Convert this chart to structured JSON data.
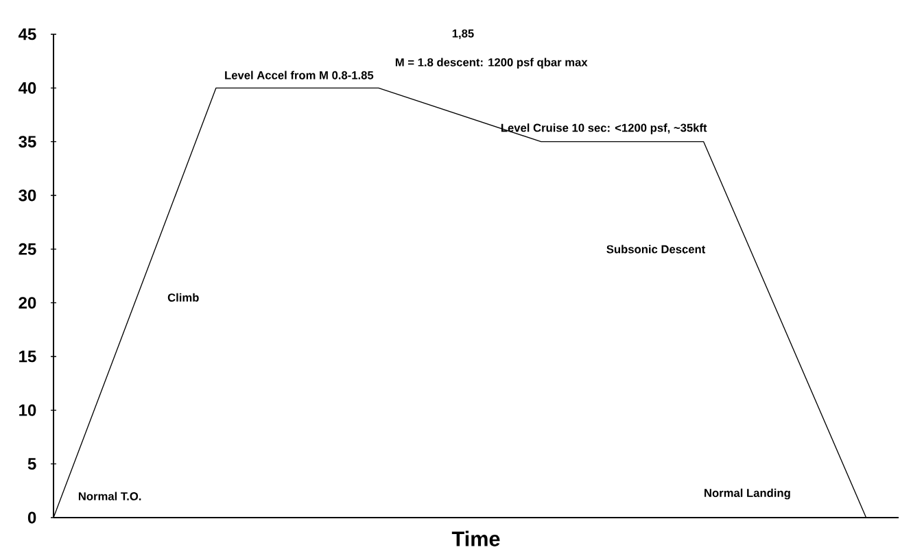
{
  "chart_data": {
    "type": "line",
    "xlabel": "Time",
    "categories": [
      null,
      null,
      null,
      null,
      null,
      null
    ],
    "values": [
      0,
      40,
      40,
      35,
      35,
      0
    ],
    "color": "#000000",
    "ylim": [
      0,
      45
    ],
    "yticks": [
      0,
      5,
      10,
      15,
      20,
      25,
      30,
      35,
      40,
      45
    ],
    "marker": "none",
    "line_style": "solid",
    "annotations": [
      "Normal T.O.",
      "Climb",
      "Level Accel from M 0.8-1.85",
      "1,85",
      "M = 1.8 descent: 1200 psf qbar max",
      "Level Cruise 10 sec: <1200 psf, ~35kft",
      "Subsonic Descent",
      "Normal Landing"
    ]
  }
}
